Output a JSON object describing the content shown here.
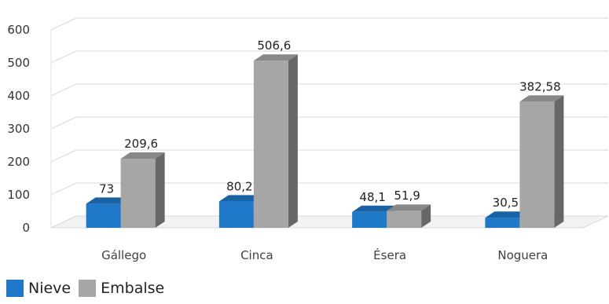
{
  "chart_data": {
    "type": "bar",
    "categories": [
      "Gállego",
      "Cinca",
      "Ésera",
      "Noguera"
    ],
    "series": [
      {
        "name": "Nieve",
        "values": [
          73,
          80.2,
          48.1,
          30.5
        ],
        "labels": [
          "73",
          "80,2",
          "48,1",
          "30,5"
        ],
        "color": "#1f78c8"
      },
      {
        "name": "Embalse",
        "values": [
          209.6,
          506.6,
          51.9,
          382.58
        ],
        "labels": [
          "209,6",
          "506,6",
          "51,9",
          "382,58"
        ],
        "color": "#a6a6a6"
      }
    ],
    "ylim": [
      0,
      600
    ],
    "yticks": [
      "0",
      "100",
      "200",
      "300",
      "400",
      "500",
      "600"
    ],
    "grid": true,
    "legend_position": "bottom-left",
    "style": "3d-column"
  }
}
